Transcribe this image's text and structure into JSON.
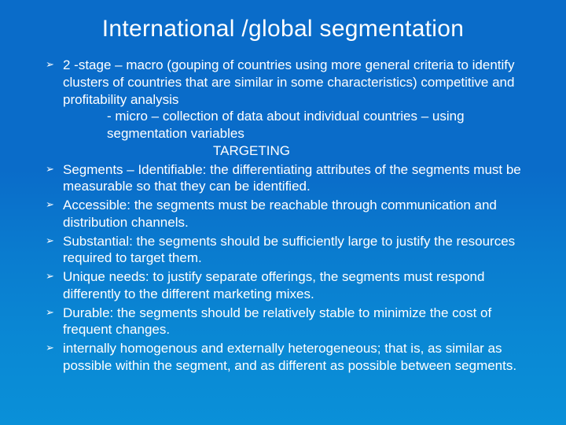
{
  "slide": {
    "background_gradient_start": "#0a6cc9",
    "background_gradient_end": "#0a90d8",
    "text_color": "#ffffff",
    "title_fontsize": 30,
    "body_fontsize": 17,
    "bullet_glyph": "➢"
  },
  "title": "International /global segmentation",
  "items": [
    {
      "line1": "2 -stage – macro (gouping of countries using more general criteria to identify clusters of countries that are similar in some characteristics) competitive and profitability analysis",
      "line2": "- micro – collection of data about individual countries – using segmentation variables",
      "line3": "TARGETING"
    },
    {
      "text": "Segments – Identifiable: the differentiating attributes of the segments must be measurable so that they can be identified."
    },
    {
      "text": "Accessible: the segments must be reachable through communication and distribution channels."
    },
    {
      "text": "Substantial: the segments should be sufficiently large to justify the resources required to target them."
    },
    {
      "text": "Unique needs: to justify separate offerings, the segments must respond differently to the different marketing mixes."
    },
    {
      "text": "Durable: the segments should be relatively stable to minimize the cost of frequent changes."
    },
    {
      "text": "internally homogenous and externally heterogeneous; that is, as similar as possible within the segment, and as different as possible between segments."
    }
  ]
}
